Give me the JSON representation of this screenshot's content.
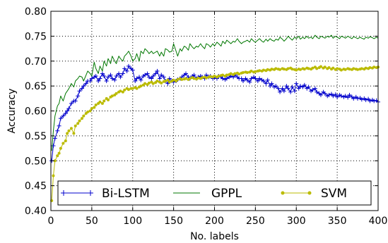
{
  "chart_data": {
    "type": "line",
    "title": "",
    "xlabel": "No. labels",
    "ylabel": "Accuracy",
    "xlim": [
      0,
      400
    ],
    "ylim": [
      0.4,
      0.8
    ],
    "xticks": [
      0,
      50,
      100,
      150,
      200,
      250,
      300,
      350,
      400
    ],
    "yticks": [
      0.4,
      0.45,
      0.5,
      0.55,
      0.6,
      0.65,
      0.7,
      0.75,
      0.8
    ],
    "grid": true,
    "legend_position": "bottom",
    "series": [
      {
        "name": "Bi-LSTM",
        "color": "#0000cc",
        "marker": "plus",
        "x": [
          1,
          3,
          5,
          8,
          10,
          12,
          15,
          18,
          20,
          22,
          25,
          28,
          30,
          33,
          35,
          38,
          40,
          43,
          45,
          48,
          50,
          53,
          55,
          58,
          60,
          63,
          65,
          68,
          70,
          73,
          75,
          78,
          80,
          83,
          85,
          88,
          90,
          93,
          95,
          98,
          100,
          103,
          105,
          108,
          110,
          113,
          115,
          118,
          120,
          123,
          125,
          128,
          130,
          133,
          135,
          138,
          140,
          143,
          145,
          148,
          150,
          153,
          155,
          158,
          160,
          163,
          165,
          168,
          170,
          173,
          175,
          178,
          180,
          183,
          185,
          188,
          190,
          193,
          195,
          198,
          200,
          203,
          205,
          208,
          210,
          213,
          215,
          218,
          220,
          223,
          225,
          228,
          230,
          233,
          235,
          238,
          240,
          243,
          245,
          248,
          250,
          253,
          255,
          258,
          260,
          263,
          265,
          268,
          270,
          273,
          275,
          278,
          280,
          283,
          285,
          288,
          290,
          293,
          295,
          298,
          300,
          303,
          305,
          308,
          310,
          313,
          315,
          318,
          320,
          323,
          325,
          328,
          330,
          333,
          335,
          338,
          340,
          343,
          345,
          348,
          350,
          353,
          355,
          358,
          360,
          363,
          365,
          368,
          370,
          373,
          375,
          378,
          380,
          383,
          385,
          388,
          390,
          393,
          395,
          398,
          400
        ],
        "y": [
          0.5,
          0.53,
          0.545,
          0.56,
          0.57,
          0.585,
          0.59,
          0.595,
          0.6,
          0.605,
          0.615,
          0.62,
          0.62,
          0.63,
          0.64,
          0.645,
          0.65,
          0.655,
          0.66,
          0.66,
          0.665,
          0.668,
          0.67,
          0.66,
          0.665,
          0.675,
          0.67,
          0.66,
          0.668,
          0.672,
          0.665,
          0.662,
          0.67,
          0.675,
          0.668,
          0.675,
          0.685,
          0.68,
          0.69,
          0.685,
          0.682,
          0.66,
          0.665,
          0.668,
          0.662,
          0.67,
          0.672,
          0.675,
          0.668,
          0.665,
          0.67,
          0.675,
          0.68,
          0.665,
          0.672,
          0.668,
          0.66,
          0.655,
          0.665,
          0.66,
          0.658,
          0.66,
          0.663,
          0.665,
          0.668,
          0.672,
          0.675,
          0.668,
          0.665,
          0.67,
          0.672,
          0.665,
          0.668,
          0.67,
          0.668,
          0.665,
          0.672,
          0.668,
          0.67,
          0.665,
          0.668,
          0.665,
          0.67,
          0.668,
          0.665,
          0.663,
          0.665,
          0.668,
          0.67,
          0.668,
          0.672,
          0.668,
          0.665,
          0.665,
          0.66,
          0.665,
          0.662,
          0.658,
          0.665,
          0.668,
          0.665,
          0.66,
          0.665,
          0.662,
          0.66,
          0.655,
          0.662,
          0.65,
          0.655,
          0.648,
          0.65,
          0.645,
          0.638,
          0.645,
          0.64,
          0.65,
          0.645,
          0.638,
          0.648,
          0.64,
          0.655,
          0.645,
          0.65,
          0.648,
          0.652,
          0.645,
          0.648,
          0.64,
          0.642,
          0.645,
          0.638,
          0.635,
          0.632,
          0.638,
          0.635,
          0.63,
          0.632,
          0.634,
          0.63,
          0.633,
          0.628,
          0.632,
          0.63,
          0.628,
          0.63,
          0.627,
          0.632,
          0.628,
          0.625,
          0.628,
          0.625,
          0.626,
          0.623,
          0.625,
          0.622,
          0.624,
          0.62,
          0.622,
          0.62,
          0.621,
          0.618
        ]
      },
      {
        "name": "GPPL",
        "color": "#007700",
        "marker": "none",
        "x": [
          1,
          3,
          5,
          8,
          10,
          12,
          15,
          18,
          20,
          22,
          25,
          28,
          30,
          33,
          35,
          38,
          40,
          43,
          45,
          48,
          50,
          53,
          55,
          58,
          60,
          63,
          65,
          68,
          70,
          73,
          75,
          78,
          80,
          83,
          85,
          88,
          90,
          93,
          95,
          98,
          100,
          103,
          105,
          108,
          110,
          113,
          115,
          118,
          120,
          123,
          125,
          128,
          130,
          133,
          135,
          138,
          140,
          143,
          145,
          148,
          150,
          153,
          155,
          158,
          160,
          163,
          165,
          168,
          170,
          173,
          175,
          178,
          180,
          183,
          185,
          188,
          190,
          193,
          195,
          198,
          200,
          203,
          205,
          208,
          210,
          213,
          215,
          218,
          220,
          223,
          225,
          228,
          230,
          233,
          235,
          238,
          240,
          243,
          245,
          248,
          250,
          253,
          255,
          258,
          260,
          263,
          265,
          268,
          270,
          273,
          275,
          278,
          280,
          283,
          285,
          288,
          290,
          293,
          295,
          298,
          300,
          303,
          305,
          308,
          310,
          313,
          315,
          318,
          320,
          323,
          325,
          328,
          330,
          333,
          335,
          338,
          340,
          343,
          345,
          348,
          350,
          353,
          355,
          358,
          360,
          363,
          365,
          368,
          370,
          373,
          375,
          378,
          380,
          383,
          385,
          388,
          390,
          393,
          395,
          398,
          400
        ],
        "y": [
          0.52,
          0.56,
          0.59,
          0.61,
          0.615,
          0.63,
          0.62,
          0.635,
          0.64,
          0.645,
          0.655,
          0.648,
          0.66,
          0.665,
          0.67,
          0.668,
          0.66,
          0.672,
          0.68,
          0.675,
          0.67,
          0.698,
          0.685,
          0.675,
          0.69,
          0.68,
          0.7,
          0.69,
          0.705,
          0.695,
          0.71,
          0.7,
          0.695,
          0.71,
          0.705,
          0.7,
          0.71,
          0.715,
          0.72,
          0.71,
          0.7,
          0.705,
          0.715,
          0.7,
          0.72,
          0.715,
          0.725,
          0.72,
          0.715,
          0.72,
          0.715,
          0.718,
          0.72,
          0.71,
          0.718,
          0.71,
          0.725,
          0.722,
          0.718,
          0.72,
          0.735,
          0.72,
          0.71,
          0.725,
          0.72,
          0.73,
          0.728,
          0.722,
          0.735,
          0.728,
          0.725,
          0.73,
          0.728,
          0.735,
          0.73,
          0.725,
          0.735,
          0.732,
          0.728,
          0.735,
          0.73,
          0.738,
          0.735,
          0.73,
          0.74,
          0.735,
          0.742,
          0.738,
          0.735,
          0.74,
          0.738,
          0.745,
          0.74,
          0.735,
          0.738,
          0.74,
          0.742,
          0.738,
          0.745,
          0.74,
          0.738,
          0.742,
          0.745,
          0.74,
          0.738,
          0.744,
          0.74,
          0.745,
          0.742,
          0.74,
          0.744,
          0.742,
          0.748,
          0.744,
          0.74,
          0.745,
          0.75,
          0.745,
          0.742,
          0.748,
          0.745,
          0.75,
          0.744,
          0.748,
          0.745,
          0.75,
          0.746,
          0.748,
          0.745,
          0.752,
          0.748,
          0.745,
          0.75,
          0.748,
          0.746,
          0.75,
          0.748,
          0.752,
          0.746,
          0.75,
          0.748,
          0.745,
          0.75,
          0.748,
          0.746,
          0.75,
          0.748,
          0.745,
          0.749,
          0.747,
          0.745,
          0.748,
          0.746,
          0.744,
          0.748,
          0.746,
          0.749,
          0.747,
          0.745,
          0.748,
          0.746
        ]
      },
      {
        "name": "SVM",
        "color": "#bbbb00",
        "marker": "dot",
        "x": [
          1,
          3,
          5,
          8,
          10,
          12,
          15,
          18,
          20,
          22,
          25,
          28,
          30,
          33,
          35,
          38,
          40,
          43,
          45,
          48,
          50,
          53,
          55,
          58,
          60,
          63,
          65,
          68,
          70,
          73,
          75,
          78,
          80,
          83,
          85,
          88,
          90,
          93,
          95,
          98,
          100,
          103,
          105,
          108,
          110,
          113,
          115,
          118,
          120,
          123,
          125,
          128,
          130,
          133,
          135,
          138,
          140,
          143,
          145,
          148,
          150,
          153,
          155,
          158,
          160,
          163,
          165,
          168,
          170,
          173,
          175,
          178,
          180,
          183,
          185,
          188,
          190,
          193,
          195,
          198,
          200,
          203,
          205,
          208,
          210,
          213,
          215,
          218,
          220,
          223,
          225,
          228,
          230,
          233,
          235,
          238,
          240,
          243,
          245,
          248,
          250,
          253,
          255,
          258,
          260,
          263,
          265,
          268,
          270,
          273,
          275,
          278,
          280,
          283,
          285,
          288,
          290,
          293,
          295,
          298,
          300,
          303,
          305,
          308,
          310,
          313,
          315,
          318,
          320,
          323,
          325,
          328,
          330,
          333,
          335,
          338,
          340,
          343,
          345,
          348,
          350,
          353,
          355,
          358,
          360,
          363,
          365,
          368,
          370,
          373,
          375,
          378,
          380,
          383,
          385,
          388,
          390,
          393,
          395,
          398,
          400
        ],
        "y": [
          0.42,
          0.47,
          0.5,
          0.51,
          0.515,
          0.525,
          0.535,
          0.54,
          0.555,
          0.56,
          0.565,
          0.555,
          0.57,
          0.575,
          0.58,
          0.585,
          0.59,
          0.595,
          0.598,
          0.6,
          0.605,
          0.607,
          0.612,
          0.615,
          0.618,
          0.615,
          0.62,
          0.625,
          0.622,
          0.628,
          0.63,
          0.632,
          0.635,
          0.638,
          0.64,
          0.638,
          0.642,
          0.645,
          0.643,
          0.645,
          0.645,
          0.647,
          0.645,
          0.648,
          0.65,
          0.652,
          0.655,
          0.653,
          0.656,
          0.658,
          0.655,
          0.657,
          0.66,
          0.658,
          0.656,
          0.659,
          0.66,
          0.662,
          0.658,
          0.66,
          0.662,
          0.66,
          0.663,
          0.665,
          0.663,
          0.664,
          0.665,
          0.663,
          0.665,
          0.667,
          0.665,
          0.664,
          0.666,
          0.665,
          0.667,
          0.668,
          0.666,
          0.668,
          0.669,
          0.668,
          0.67,
          0.668,
          0.67,
          0.671,
          0.672,
          0.67,
          0.672,
          0.673,
          0.675,
          0.673,
          0.675,
          0.676,
          0.674,
          0.676,
          0.677,
          0.678,
          0.677,
          0.678,
          0.68,
          0.678,
          0.679,
          0.68,
          0.681,
          0.68,
          0.682,
          0.681,
          0.683,
          0.682,
          0.684,
          0.683,
          0.685,
          0.684,
          0.683,
          0.685,
          0.684,
          0.683,
          0.685,
          0.686,
          0.684,
          0.683,
          0.682,
          0.684,
          0.683,
          0.685,
          0.684,
          0.686,
          0.685,
          0.684,
          0.686,
          0.688,
          0.685,
          0.687,
          0.689,
          0.686,
          0.688,
          0.685,
          0.687,
          0.684,
          0.686,
          0.683,
          0.685,
          0.684,
          0.682,
          0.684,
          0.683,
          0.685,
          0.684,
          0.683,
          0.685,
          0.684,
          0.683,
          0.684,
          0.685,
          0.684,
          0.686,
          0.685,
          0.687,
          0.686,
          0.688,
          0.687,
          0.688
        ]
      }
    ]
  }
}
